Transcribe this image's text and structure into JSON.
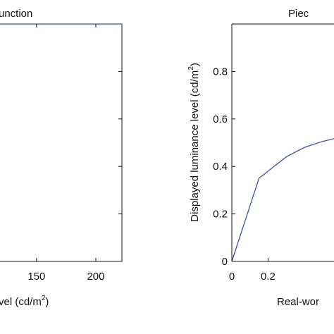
{
  "chart_data": [
    {
      "type": "line",
      "title": "unction",
      "xlabel": "vel (cd/m",
      "xlabel_sup": "2",
      "xlabel_close": ")",
      "ylabel": "",
      "xlim": [
        118,
        222
      ],
      "ylim": [
        0,
        1
      ],
      "xticks": [
        150,
        200
      ],
      "xtick_labels": [
        "150",
        "200"
      ],
      "series": [
        {
          "x": [
            118,
            222
          ],
          "y": [
            1.0,
            1.0
          ]
        }
      ],
      "line_color": "#3553b0"
    },
    {
      "type": "line",
      "title": "Piec",
      "xlabel": "Real-wor",
      "ylabel": "Displayed luminance level (cd/m",
      "ylabel_sup": "2",
      "ylabel_close": ")",
      "xlim": [
        0,
        0.58
      ],
      "ylim": [
        0,
        1
      ],
      "xticks": [
        0,
        0.2
      ],
      "xtick_labels": [
        "0",
        "0.2"
      ],
      "yticks": [
        0,
        0.2,
        0.4,
        0.6,
        0.8
      ],
      "ytick_labels": [
        "0",
        "0.2",
        "0.4",
        "0.6",
        "0.8"
      ],
      "series": [
        {
          "x": [
            0,
            0.15,
            0.3,
            0.4,
            0.5,
            0.58
          ],
          "y": [
            0,
            0.35,
            0.44,
            0.48,
            0.505,
            0.52
          ]
        }
      ],
      "line_color": "#3553b0"
    }
  ]
}
